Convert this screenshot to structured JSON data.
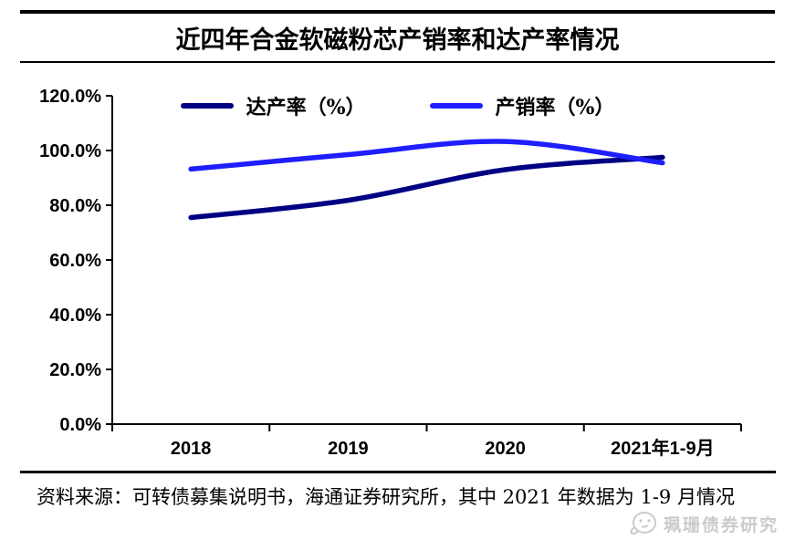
{
  "title": "近四年合金软磁粉芯产销率和达产率情况",
  "chart_data": {
    "type": "line",
    "categories": [
      "2018",
      "2019",
      "2020",
      "2021年1-9月"
    ],
    "series": [
      {
        "name": "达产率（%）",
        "color": "#000083",
        "values": [
          75.5,
          81.8,
          93.0,
          97.5
        ]
      },
      {
        "name": "产销率（%）",
        "color": "#1E1EFF",
        "values": [
          93.2,
          98.5,
          103.3,
          95.5
        ]
      }
    ],
    "ylim": [
      0,
      120
    ],
    "ytick_labels": [
      "0.0%",
      "20.0%",
      "40.0%",
      "60.0%",
      "80.0%",
      "100.0%",
      "120.0%"
    ],
    "grid": false,
    "legend_position": "top",
    "line_style": "smooth"
  },
  "source_note": "资料来源：可转债募集说明书，海通证券研究所，其中 2021 年数据为 1-9 月情况",
  "watermark": {
    "text": "珮珊债券研究",
    "icon": "mascot-face-icon"
  },
  "colors": {
    "axis": "#000000",
    "rule": "#000000",
    "watermark": "#cbcbcb"
  }
}
